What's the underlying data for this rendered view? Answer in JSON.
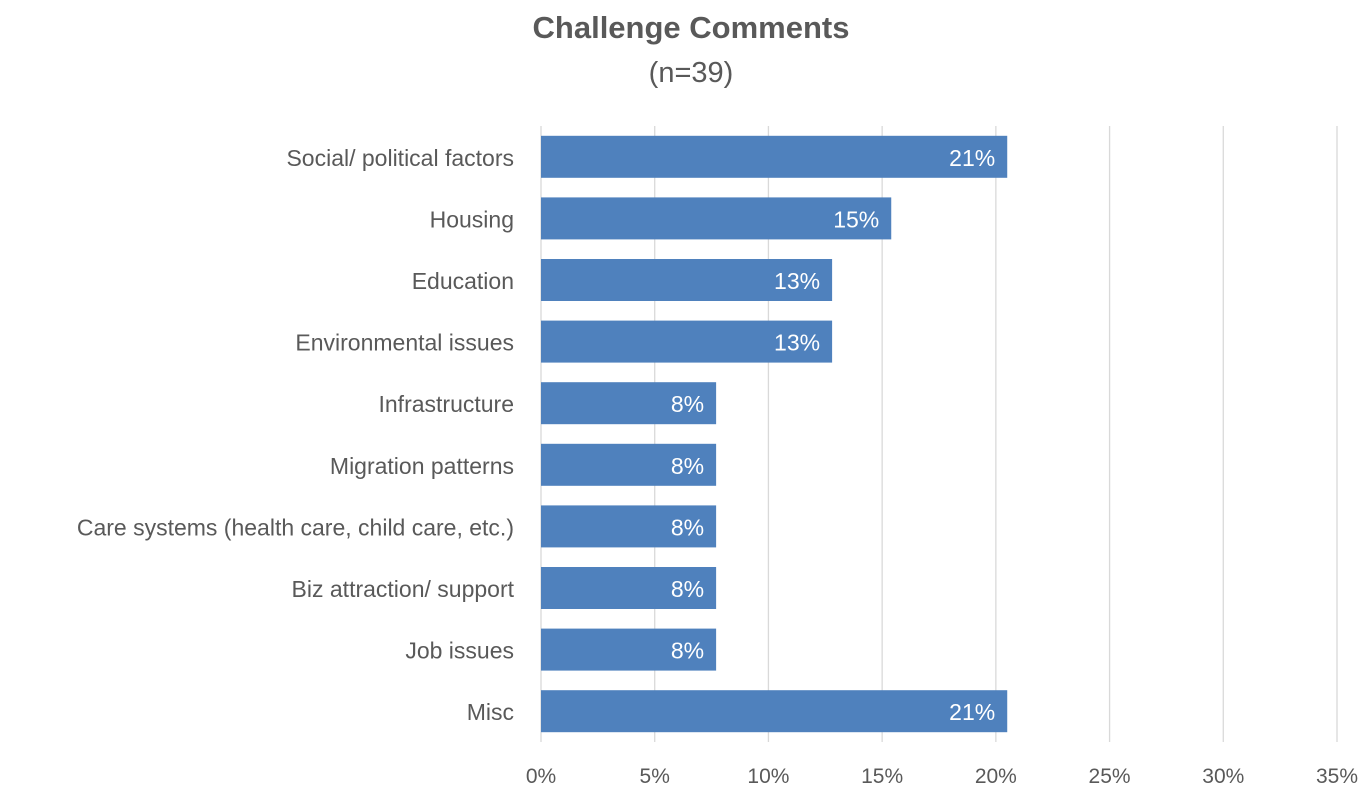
{
  "chart_data": {
    "type": "bar",
    "orientation": "horizontal",
    "title": "Challenge Comments",
    "subtitle": "(n=39)",
    "categories": [
      "Social/ political factors",
      "Housing",
      "Education",
      "Environmental issues",
      "Infrastructure",
      "Migration patterns",
      "Care systems (health care, child care, etc.)",
      "Biz attraction/ support",
      "Job issues",
      "Misc"
    ],
    "values": [
      20.5,
      15.4,
      12.8,
      12.8,
      7.7,
      7.7,
      7.7,
      7.7,
      7.7,
      20.5
    ],
    "data_labels": [
      "21%",
      "15%",
      "13%",
      "13%",
      "8%",
      "8%",
      "8%",
      "8%",
      "8%",
      "21%"
    ],
    "xlim": [
      0,
      35
    ],
    "xticks": [
      0,
      5,
      10,
      15,
      20,
      25,
      30,
      35
    ],
    "xtick_labels": [
      "0%",
      "5%",
      "10%",
      "15%",
      "20%",
      "25%",
      "30%",
      "35%"
    ],
    "grid": "vertical",
    "legend": "none",
    "colors": {
      "bar": "#4f81bd",
      "grid": "#d9d9d9",
      "text": "#595959",
      "label": "#ffffff"
    }
  }
}
